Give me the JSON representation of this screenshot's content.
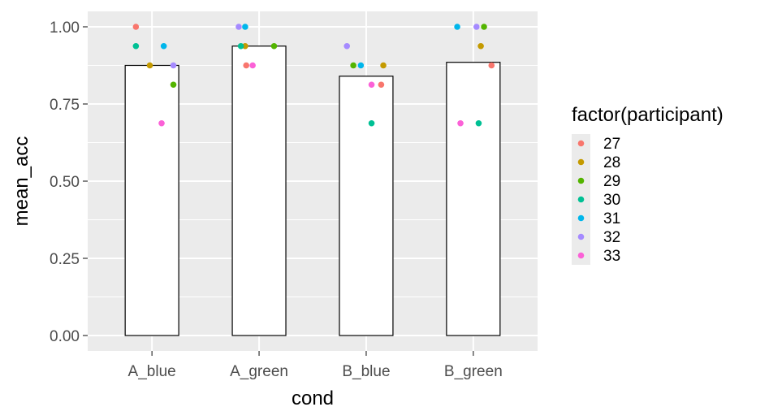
{
  "chart_data": {
    "type": "bar",
    "xlabel": "cond",
    "ylabel": "mean_acc",
    "ylim": [
      -0.05,
      1.05
    ],
    "yticks": [
      0.0,
      0.25,
      0.5,
      0.75,
      1.0
    ],
    "ytick_labels": [
      "0.00",
      "0.25",
      "0.50",
      "0.75",
      "1.00"
    ],
    "categories": [
      "A_blue",
      "A_green",
      "B_blue",
      "B_green"
    ],
    "bar_values": [
      0.875,
      0.9375,
      0.84,
      0.885
    ],
    "grid": true,
    "legend": {
      "title": "factor(participant)",
      "position": "right",
      "entries": [
        {
          "label": "27",
          "color": "#F8766D"
        },
        {
          "label": "28",
          "color": "#C49A00"
        },
        {
          "label": "29",
          "color": "#53B400"
        },
        {
          "label": "30",
          "color": "#00C094"
        },
        {
          "label": "31",
          "color": "#00B6EB"
        },
        {
          "label": "32",
          "color": "#A58AFF"
        },
        {
          "label": "33",
          "color": "#FB61D7"
        }
      ]
    },
    "points": [
      {
        "category": "A_blue",
        "participant": "27",
        "y": 1.0,
        "jitter": -0.15
      },
      {
        "category": "A_blue",
        "participant": "28",
        "y": 0.875,
        "jitter": -0.02
      },
      {
        "category": "A_blue",
        "participant": "29",
        "y": 0.8125,
        "jitter": 0.2
      },
      {
        "category": "A_blue",
        "participant": "30",
        "y": 0.9375,
        "jitter": -0.15
      },
      {
        "category": "A_blue",
        "participant": "31",
        "y": 0.9375,
        "jitter": 0.11
      },
      {
        "category": "A_blue",
        "participant": "32",
        "y": 0.875,
        "jitter": 0.2
      },
      {
        "category": "A_blue",
        "participant": "33",
        "y": 0.6875,
        "jitter": 0.09
      },
      {
        "category": "A_green",
        "participant": "27",
        "y": 0.875,
        "jitter": -0.12
      },
      {
        "category": "A_green",
        "participant": "28",
        "y": 0.9375,
        "jitter": -0.13
      },
      {
        "category": "A_green",
        "participant": "29",
        "y": 0.9375,
        "jitter": 0.14
      },
      {
        "category": "A_green",
        "participant": "30",
        "y": 0.9375,
        "jitter": -0.17
      },
      {
        "category": "A_green",
        "participant": "31",
        "y": 1.0,
        "jitter": -0.13
      },
      {
        "category": "A_green",
        "participant": "32",
        "y": 1.0,
        "jitter": -0.19
      },
      {
        "category": "A_green",
        "participant": "33",
        "y": 0.875,
        "jitter": -0.06
      },
      {
        "category": "B_blue",
        "participant": "27",
        "y": 0.8125,
        "jitter": 0.14
      },
      {
        "category": "B_blue",
        "participant": "28",
        "y": 0.875,
        "jitter": 0.16
      },
      {
        "category": "B_blue",
        "participant": "29",
        "y": 0.875,
        "jitter": -0.12
      },
      {
        "category": "B_blue",
        "participant": "30",
        "y": 0.6875,
        "jitter": 0.05
      },
      {
        "category": "B_blue",
        "participant": "31",
        "y": 0.875,
        "jitter": -0.05
      },
      {
        "category": "B_blue",
        "participant": "32",
        "y": 0.9375,
        "jitter": -0.18
      },
      {
        "category": "B_blue",
        "participant": "33",
        "y": 0.8125,
        "jitter": 0.05
      },
      {
        "category": "B_green",
        "participant": "27",
        "y": 0.875,
        "jitter": 0.17
      },
      {
        "category": "B_green",
        "participant": "28",
        "y": 0.9375,
        "jitter": 0.07
      },
      {
        "category": "B_green",
        "participant": "29",
        "y": 1.0,
        "jitter": 0.1
      },
      {
        "category": "B_green",
        "participant": "30",
        "y": 0.6875,
        "jitter": 0.05
      },
      {
        "category": "B_green",
        "participant": "31",
        "y": 1.0,
        "jitter": -0.15
      },
      {
        "category": "B_green",
        "participant": "32",
        "y": 1.0,
        "jitter": 0.03
      },
      {
        "category": "B_green",
        "participant": "33",
        "y": 0.6875,
        "jitter": -0.12
      }
    ]
  }
}
